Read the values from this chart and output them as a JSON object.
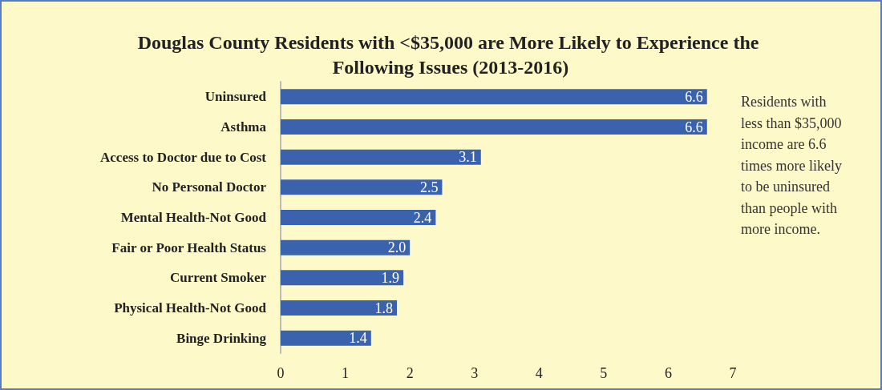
{
  "chart_data": {
    "type": "bar",
    "orientation": "horizontal",
    "title": "Douglas County Residents with <$35,000 are More Likely to Experience the Following Issues (2013-2016)",
    "categories": [
      "Uninsured",
      "Asthma",
      "Access to Doctor due to Cost",
      "No Personal Doctor",
      "Mental Health-Not Good",
      "Fair or Poor Health Status",
      "Current Smoker",
      "Physical Health-Not Good",
      "Binge Drinking"
    ],
    "values": [
      6.6,
      6.6,
      3.1,
      2.5,
      2.4,
      2.0,
      1.9,
      1.8,
      1.4
    ],
    "value_labels": [
      "6.6",
      "6.6",
      "3.1",
      "2.5",
      "2.4",
      "2.0",
      "1.9",
      "1.8",
      "1.4"
    ],
    "color": "#3b62ad",
    "xlim": [
      0,
      7
    ],
    "xticks": [
      0,
      1,
      2,
      3,
      4,
      5,
      6,
      7
    ],
    "grid": false,
    "annotations": [
      "Residents with less than $35,000 income are 6.6 times more likely to be uninsured than people with more income."
    ]
  }
}
